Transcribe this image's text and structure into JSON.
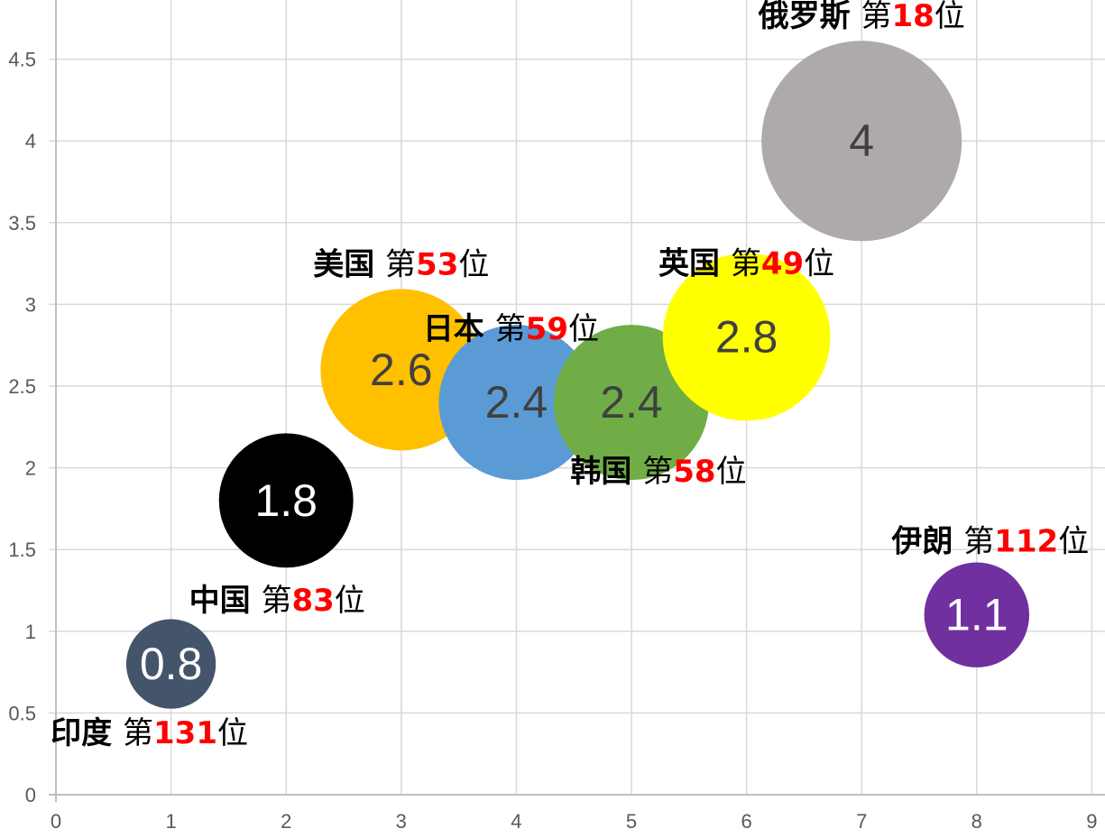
{
  "chart_data": {
    "type": "bubble",
    "xlim": [
      0,
      9
    ],
    "ylim": [
      0,
      4.8
    ],
    "x_ticks": [
      "0",
      "1",
      "2",
      "3",
      "4",
      "5",
      "6",
      "7",
      "8",
      "9"
    ],
    "y_ticks": [
      "0",
      "0.5",
      "1",
      "1.5",
      "2",
      "2.5",
      "3",
      "3.5",
      "4",
      "4.5"
    ],
    "grid": true,
    "points": [
      {
        "x": 1,
        "y": 0.8,
        "value_label": "0.8",
        "name": "印度",
        "prefix": "第",
        "rank": "131",
        "suffix": "位",
        "color": "#44546a",
        "text_color": "#ffffff",
        "label_pos": "below"
      },
      {
        "x": 2,
        "y": 1.8,
        "value_label": "1.8",
        "name": "中国",
        "prefix": "第",
        "rank": "83",
        "suffix": "位",
        "color": "#000000",
        "text_color": "#ffffff",
        "label_pos": "below"
      },
      {
        "x": 3,
        "y": 2.6,
        "value_label": "2.6",
        "name": "美国",
        "prefix": "第",
        "rank": "53",
        "suffix": "位",
        "color": "#ffc000",
        "text_color": "#404040",
        "label_pos": "above"
      },
      {
        "x": 4,
        "y": 2.4,
        "value_label": "2.4",
        "name": "日本",
        "prefix": "第",
        "rank": "59",
        "suffix": "位",
        "color": "#5b9bd5",
        "text_color": "#404040",
        "label_pos": "above"
      },
      {
        "x": 5,
        "y": 2.4,
        "value_label": "2.4",
        "name": "韩国",
        "prefix": "第",
        "rank": "58",
        "suffix": "位",
        "color": "#70ad47",
        "text_color": "#404040",
        "label_pos": "below"
      },
      {
        "x": 6,
        "y": 2.8,
        "value_label": "2.8",
        "name": "英国",
        "prefix": "第",
        "rank": "49",
        "suffix": "位",
        "color": "#ffff00",
        "text_color": "#404040",
        "label_pos": "above"
      },
      {
        "x": 7,
        "y": 4,
        "value_label": "4",
        "name": "俄罗斯",
        "prefix": "第",
        "rank": "18",
        "suffix": "位",
        "color": "#aeaaaa",
        "text_color": "#404040",
        "label_pos": "above"
      },
      {
        "x": 8,
        "y": 1.1,
        "value_label": "1.1",
        "name": "伊朗",
        "prefix": "第",
        "rank": "112",
        "suffix": "位",
        "color": "#7030a0",
        "text_color": "#ffffff",
        "label_pos": "above"
      }
    ],
    "rank_color": "#ff0000"
  }
}
